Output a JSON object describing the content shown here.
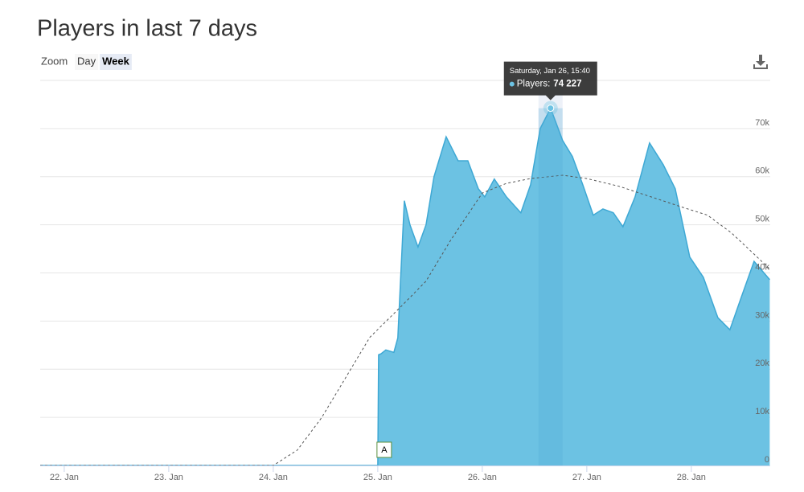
{
  "title": "Players in last 7 days",
  "zoom": {
    "label": "Zoom",
    "buttons": [
      "Day",
      "Week"
    ],
    "active": 1
  },
  "chart_data": {
    "type": "area",
    "xlim": [
      21.77,
      28.755
    ],
    "ylim": [
      0,
      80000
    ],
    "xticks": [
      {
        "value": 22,
        "label": "22. Jan"
      },
      {
        "value": 23,
        "label": "23. Jan"
      },
      {
        "value": 24,
        "label": "24. Jan"
      },
      {
        "value": 25,
        "label": "25. Jan"
      },
      {
        "value": 26,
        "label": "26. Jan"
      },
      {
        "value": 27,
        "label": "27. Jan"
      },
      {
        "value": 28,
        "label": "28. Jan"
      }
    ],
    "yticks": [
      0,
      {
        "value": 10000,
        "label": "10k"
      },
      {
        "value": 20000,
        "label": "20k"
      },
      {
        "value": 30000,
        "label": "30k"
      },
      {
        "value": 40000,
        "label": "40k"
      },
      {
        "value": 50000,
        "label": "50k"
      },
      {
        "value": 60000,
        "label": "60k"
      },
      {
        "value": 70000,
        "label": "70k"
      }
    ],
    "grid": true,
    "series": [
      {
        "color": "#6cc2e3",
        "line_color": "#3ea8d4",
        "x": [
          21.77,
          25.0,
          25.008,
          25.031,
          25.077,
          25.154,
          25.192,
          25.254,
          25.308,
          25.385,
          25.462,
          25.538,
          25.654,
          25.769,
          25.862,
          25.962,
          26.023,
          26.115,
          26.231,
          26.369,
          26.462,
          26.554,
          26.653,
          26.769,
          26.862,
          26.962,
          27.062,
          27.154,
          27.254,
          27.346,
          27.462,
          27.6,
          27.731,
          27.846,
          27.985,
          28.115,
          28.254,
          28.369,
          28.477,
          28.6,
          28.75
        ],
        "values": [
          0,
          0,
          23000,
          23200,
          24000,
          23500,
          26500,
          55000,
          50000,
          45400,
          50000,
          60000,
          68300,
          63300,
          63300,
          57500,
          55800,
          59500,
          55800,
          52500,
          58300,
          70000,
          74227,
          67500,
          64200,
          58300,
          52000,
          53300,
          52500,
          49600,
          55800,
          67000,
          62500,
          57500,
          43300,
          39100,
          30700,
          28200,
          34900,
          42400,
          38600
        ]
      },
      {
        "color": "#555555",
        "dashed": true,
        "x": [
          21.77,
          24.0,
          24.231,
          24.462,
          24.692,
          24.923,
          25.231,
          25.462,
          25.692,
          26.0,
          26.231,
          26.462,
          26.769,
          27.0,
          27.308,
          27.615,
          27.923,
          28.154,
          28.385,
          28.615,
          28.75
        ],
        "values": [
          0,
          0,
          3200,
          9900,
          18200,
          26600,
          33200,
          38300,
          46600,
          56600,
          58600,
          59600,
          60300,
          59600,
          58000,
          55800,
          53600,
          52000,
          48300,
          43600,
          40800
        ]
      }
    ],
    "tooltip": {
      "header": "Saturday, Jan 26, 15:40",
      "label": "Players:",
      "value": 74227,
      "value_label": "74 227",
      "x": 26.653
    },
    "annotation": {
      "text": "A",
      "x": 25
    }
  }
}
